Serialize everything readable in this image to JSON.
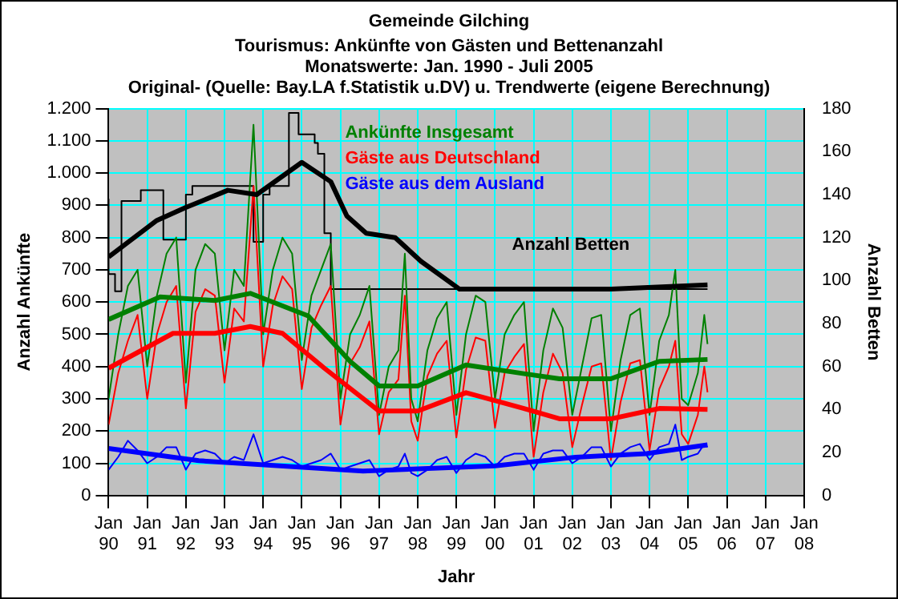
{
  "chart_data": {
    "type": "line",
    "title": "Gemeinde Gilching",
    "subtitle": "Tourismus: Ankünfte von Gästen und Bettenanzahl\nMonatswerte: Jan. 1990 - Juli 2005\nOriginal- (Quelle: Bay.LA f.Statistik u.DV) u. Trendwerte (eigene Berechnung)",
    "xlabel": "Jahr",
    "ylabel": "Anzahl Ankünfte",
    "y2label": "Anzahl Betten",
    "xlim": [
      "1990-01",
      "2008-01"
    ],
    "xticks": [
      {
        "value": "1990-01",
        "label": "Jan 90"
      },
      {
        "value": "1991-01",
        "label": "Jan 91"
      },
      {
        "value": "1992-01",
        "label": "Jan 92"
      },
      {
        "value": "1993-01",
        "label": "Jan 93"
      },
      {
        "value": "1994-01",
        "label": "Jan 94"
      },
      {
        "value": "1995-01",
        "label": "Jan 95"
      },
      {
        "value": "1996-01",
        "label": "Jan 96"
      },
      {
        "value": "1997-01",
        "label": "Jan 97"
      },
      {
        "value": "1998-01",
        "label": "Jan 98"
      },
      {
        "value": "1999-01",
        "label": "Jan 99"
      },
      {
        "value": "2000-01",
        "label": "Jan 00"
      },
      {
        "value": "2001-01",
        "label": "Jan 01"
      },
      {
        "value": "2002-01",
        "label": "Jan 02"
      },
      {
        "value": "2003-01",
        "label": "Jan 03"
      },
      {
        "value": "2004-01",
        "label": "Jan 04"
      },
      {
        "value": "2005-01",
        "label": "Jan 05"
      },
      {
        "value": "2006-01",
        "label": "Jan 06"
      },
      {
        "value": "2007-01",
        "label": "Jan 07"
      },
      {
        "value": "2008-01",
        "label": "Jan 08"
      }
    ],
    "ylim": [
      0,
      1200
    ],
    "yticks": [
      0,
      100,
      200,
      300,
      400,
      500,
      600,
      700,
      800,
      900,
      {
        "value": 1000,
        "label": "1.000"
      },
      {
        "value": 1100,
        "label": "1.100"
      },
      {
        "value": 1200,
        "label": "1.200"
      }
    ],
    "y2lim": [
      0,
      180
    ],
    "y2ticks": [
      0,
      20,
      40,
      60,
      80,
      100,
      120,
      140,
      160,
      180
    ],
    "grid": true,
    "legend": "top",
    "marker": "none",
    "line_style": "solid",
    "x": [
      "1990-01",
      "1990-04",
      "1990-07",
      "1990-10",
      "1991-01",
      "1991-04",
      "1991-07",
      "1991-10",
      "1992-01",
      "1992-04",
      "1992-07",
      "1992-10",
      "1993-01",
      "1993-04",
      "1993-07",
      "1993-10",
      "1994-01",
      "1994-04",
      "1994-07",
      "1994-10",
      "1995-01",
      "1995-04",
      "1995-07",
      "1995-10",
      "1996-01",
      "1996-04",
      "1996-07",
      "1996-10",
      "1997-01",
      "1997-04",
      "1997-07",
      "1997-09",
      "1997-11",
      "1998-01",
      "1998-04",
      "1998-07",
      "1998-10",
      "1999-01",
      "1999-04",
      "1999-07",
      "1999-10",
      "2000-01",
      "2000-04",
      "2000-07",
      "2000-10",
      "2001-01",
      "2001-04",
      "2001-07",
      "2001-10",
      "2002-01",
      "2002-04",
      "2002-07",
      "2002-10",
      "2003-01",
      "2003-04",
      "2003-07",
      "2003-10",
      "2004-01",
      "2004-04",
      "2004-07",
      "2004-09",
      "2004-11",
      "2005-01",
      "2005-04",
      "2005-06",
      "2005-07"
    ],
    "series": [
      {
        "name": "Ankünfte Insgesamt",
        "color": "#008000",
        "values": [
          300,
          500,
          650,
          700,
          400,
          620,
          750,
          800,
          350,
          700,
          780,
          750,
          450,
          700,
          650,
          1150,
          500,
          700,
          800,
          750,
          420,
          620,
          700,
          780,
          300,
          500,
          560,
          650,
          250,
          400,
          450,
          750,
          300,
          230,
          450,
          550,
          600,
          250,
          500,
          620,
          600,
          300,
          500,
          560,
          600,
          200,
          450,
          580,
          520,
          250,
          400,
          550,
          560,
          200,
          420,
          560,
          580,
          250,
          480,
          560,
          700,
          300,
          280,
          380,
          560,
          470
        ]
      },
      {
        "name": "Gäste aus Deutschland",
        "color": "#ff0000",
        "values": [
          220,
          380,
          480,
          560,
          300,
          500,
          600,
          650,
          270,
          570,
          640,
          620,
          350,
          580,
          540,
          960,
          400,
          590,
          680,
          640,
          330,
          520,
          590,
          650,
          220,
          410,
          460,
          540,
          190,
          320,
          360,
          620,
          230,
          170,
          370,
          440,
          480,
          180,
          390,
          490,
          480,
          210,
          380,
          430,
          470,
          120,
          320,
          440,
          380,
          150,
          280,
          400,
          410,
          110,
          290,
          410,
          420,
          140,
          330,
          400,
          480,
          190,
          160,
          250,
          400,
          320
        ]
      },
      {
        "name": "Gäste aus dem Ausland",
        "color": "#0000ff",
        "values": [
          80,
          120,
          170,
          140,
          100,
          120,
          150,
          150,
          80,
          130,
          140,
          130,
          100,
          120,
          110,
          190,
          100,
          110,
          120,
          110,
          90,
          100,
          110,
          130,
          80,
          90,
          100,
          110,
          60,
          80,
          90,
          130,
          70,
          60,
          80,
          110,
          120,
          70,
          110,
          130,
          120,
          90,
          120,
          130,
          130,
          80,
          130,
          140,
          140,
          100,
          120,
          150,
          150,
          90,
          130,
          150,
          160,
          110,
          150,
          160,
          220,
          110,
          120,
          130,
          160,
          150
        ]
      },
      {
        "type": "line",
        "color": "#008000",
        "x": [
          "1990-01",
          "1991-05",
          "1992-10",
          "1993-09",
          "1995-03",
          "1996-04",
          "1997-01",
          "1998-01",
          "1999-04",
          "2000-10",
          "2001-09",
          "2003-01",
          "2004-04",
          "2005-07"
        ],
        "values": [
          546,
          616,
          605,
          627,
          557,
          416,
          340,
          340,
          405,
          378,
          362,
          362,
          416,
          422
        ]
      },
      {
        "type": "line",
        "color": "#ff0000",
        "x": [
          "1990-01",
          "1991-09",
          "1992-10",
          "1993-09",
          "1994-07",
          "1995-08",
          "1997-01",
          "1998-01",
          "1999-04",
          "2000-10",
          "2001-09",
          "2003-01",
          "2004-04",
          "2005-07"
        ],
        "values": [
          395,
          503,
          503,
          524,
          503,
          395,
          262,
          262,
          319,
          270,
          238,
          238,
          270,
          267
        ]
      },
      {
        "type": "line",
        "color": "#0000ff",
        "x": [
          "1990-01",
          "1992-05",
          "1996-08",
          "2000-01",
          "2002-02",
          "2003-12",
          "2005-07"
        ],
        "values": [
          146,
          108,
          76,
          92,
          119,
          130,
          157
        ]
      },
      {
        "type": "step",
        "name": "Anzahl Betten",
        "color": "#000000",
        "axis": "y2",
        "x": [
          "1990-01",
          "1990-03",
          "1990-05",
          "1990-11",
          "1991-06",
          "1992-01",
          "1992-03",
          "1993-10",
          "1994-01",
          "1994-03",
          "1994-09",
          "1994-12",
          "1995-05",
          "1995-06",
          "1995-08",
          "1995-10",
          "1998-04",
          "2005-07"
        ],
        "values": [
          138,
          103,
          95,
          137,
          142,
          119,
          140,
          144,
          118,
          140,
          144,
          178,
          168,
          164,
          159,
          122,
          96,
          96
        ]
      },
      {
        "type": "line",
        "color": "#000000",
        "axis": "y2",
        "x": [
          "1990-01",
          "1991-04",
          "1992-01",
          "1993-02",
          "1993-11",
          "1995-01",
          "1995-10",
          "1996-03",
          "1996-09",
          "1997-06",
          "1998-02",
          "1999-02",
          "2003-01",
          "2005-07"
        ],
        "values": [
          111,
          128,
          134,
          142,
          140,
          155,
          146,
          130,
          122,
          120,
          109,
          96,
          96,
          98
        ]
      }
    ]
  }
}
